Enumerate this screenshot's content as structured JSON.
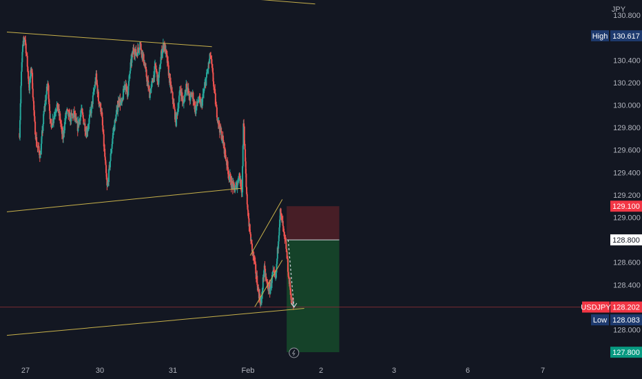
{
  "chart_data": {
    "type": "candlestick",
    "symbol": "USDJPY",
    "currency": "JPY",
    "y_axis": {
      "min": 127.7,
      "max": 130.9,
      "ticks": [
        "130.800",
        "130.600",
        "130.400",
        "130.200",
        "130.000",
        "129.800",
        "129.600",
        "129.400",
        "129.200",
        "129.000",
        "128.800",
        "128.600",
        "128.400",
        "128.200",
        "128.000"
      ]
    },
    "x_axis": {
      "ticks": [
        {
          "label": "27",
          "day": 0
        },
        {
          "label": "30",
          "day": 1
        },
        {
          "label": "31",
          "day": 2
        },
        {
          "label": "Feb",
          "day": 3
        },
        {
          "label": "2",
          "day": 4
        },
        {
          "label": "3",
          "day": 5
        },
        {
          "label": "6",
          "day": 6
        },
        {
          "label": "7",
          "day": 7
        }
      ]
    },
    "price_path": [
      [
        -0.08,
        129.75
      ],
      [
        -0.06,
        130.2
      ],
      [
        -0.04,
        130.5
      ],
      [
        -0.01,
        130.62
      ],
      [
        0.02,
        130.4
      ],
      [
        0.05,
        130.15
      ],
      [
        0.08,
        130.35
      ],
      [
        0.12,
        129.85
      ],
      [
        0.15,
        129.65
      ],
      [
        0.2,
        129.55
      ],
      [
        0.25,
        129.95
      ],
      [
        0.3,
        130.2
      ],
      [
        0.34,
        129.8
      ],
      [
        0.38,
        129.9
      ],
      [
        0.42,
        130.0
      ],
      [
        0.46,
        129.9
      ],
      [
        0.5,
        129.7
      ],
      [
        0.55,
        129.95
      ],
      [
        0.6,
        129.88
      ],
      [
        0.65,
        129.92
      ],
      [
        0.7,
        129.8
      ],
      [
        0.75,
        129.95
      ],
      [
        0.82,
        129.75
      ],
      [
        0.88,
        129.95
      ],
      [
        0.95,
        130.25
      ],
      [
        0.98,
        130.05
      ],
      [
        1.02,
        129.95
      ],
      [
        1.06,
        129.6
      ],
      [
        1.1,
        129.25
      ],
      [
        1.14,
        129.5
      ],
      [
        1.18,
        129.75
      ],
      [
        1.22,
        129.9
      ],
      [
        1.26,
        130.05
      ],
      [
        1.3,
        130.0
      ],
      [
        1.34,
        130.2
      ],
      [
        1.38,
        130.1
      ],
      [
        1.42,
        130.35
      ],
      [
        1.46,
        130.5
      ],
      [
        1.5,
        130.45
      ],
      [
        1.55,
        130.55
      ],
      [
        1.6,
        130.4
      ],
      [
        1.64,
        130.25
      ],
      [
        1.68,
        130.1
      ],
      [
        1.72,
        130.2
      ],
      [
        1.76,
        130.35
      ],
      [
        1.8,
        130.2
      ],
      [
        1.84,
        130.45
      ],
      [
        1.88,
        130.55
      ],
      [
        1.92,
        130.4
      ],
      [
        1.96,
        130.2
      ],
      [
        2.0,
        130.05
      ],
      [
        2.04,
        129.85
      ],
      [
        2.06,
        129.95
      ],
      [
        2.1,
        130.15
      ],
      [
        2.14,
        130.0
      ],
      [
        2.18,
        130.2
      ],
      [
        2.22,
        130.05
      ],
      [
        2.26,
        130.1
      ],
      [
        2.3,
        129.95
      ],
      [
        2.34,
        130.05
      ],
      [
        2.38,
        130.0
      ],
      [
        2.42,
        130.15
      ],
      [
        2.46,
        130.3
      ],
      [
        2.5,
        130.45
      ],
      [
        2.54,
        130.2
      ],
      [
        2.58,
        129.95
      ],
      [
        2.62,
        129.8
      ],
      [
        2.66,
        129.7
      ],
      [
        2.7,
        129.55
      ],
      [
        2.74,
        129.4
      ],
      [
        2.78,
        129.3
      ],
      [
        2.82,
        129.25
      ],
      [
        2.86,
        129.3
      ],
      [
        2.88,
        129.4
      ],
      [
        2.92,
        129.22
      ],
      [
        2.94,
        129.88
      ],
      [
        2.98,
        129.2
      ],
      [
        3.02,
        128.9
      ],
      [
        3.06,
        128.7
      ],
      [
        3.1,
        128.55
      ],
      [
        3.14,
        128.35
      ],
      [
        3.18,
        128.22
      ],
      [
        3.22,
        128.55
      ],
      [
        3.26,
        128.4
      ],
      [
        3.3,
        128.35
      ],
      [
        3.34,
        128.5
      ],
      [
        3.38,
        128.45
      ],
      [
        3.4,
        128.65
      ],
      [
        3.44,
        129.05
      ],
      [
        3.47,
        128.95
      ],
      [
        3.5,
        128.8
      ],
      [
        3.52,
        128.75
      ],
      [
        3.56,
        128.45
      ],
      [
        3.6,
        128.25
      ],
      [
        3.63,
        128.2
      ]
    ],
    "trendlines": [
      {
        "from": [
          -0.25,
          130.65
        ],
        "to": [
          2.52,
          130.52
        ],
        "color": "#c9b24b"
      },
      {
        "from": [
          2.4,
          130.98
        ],
        "to": [
          3.92,
          130.9
        ],
        "color": "#c9b24b"
      },
      {
        "from": [
          -0.25,
          129.05
        ],
        "to": [
          2.92,
          129.26
        ],
        "color": "#c9b24b"
      },
      {
        "from": [
          -0.25,
          127.95
        ],
        "to": [
          3.77,
          128.19
        ],
        "color": "#c9b24b"
      },
      {
        "from": [
          3.09,
          128.2
        ],
        "to": [
          3.47,
          128.62
        ],
        "color": "#c9b24b"
      },
      {
        "from": [
          3.03,
          128.66
        ],
        "to": [
          3.47,
          129.16
        ],
        "color": "#c9b24b"
      }
    ],
    "position": {
      "type": "short",
      "entry": 128.8,
      "stop": 129.1,
      "target": 127.8,
      "start_day": 3.53,
      "end_day": 4.25,
      "projection": [
        [
          3.55,
          128.8
        ],
        [
          3.63,
          128.2
        ]
      ]
    },
    "labels": {
      "high": {
        "text": "High",
        "value": "130.617",
        "price": 130.617
      },
      "current": {
        "text": "USDJPY",
        "value": "128.202",
        "price": 128.202
      },
      "low": {
        "text": "Low",
        "value": "128.083",
        "price": 128.083
      },
      "stop": {
        "value": "129.100",
        "price": 129.1
      },
      "entry": {
        "value": "128.800",
        "price": 128.8
      },
      "target": {
        "value": "127.800",
        "price": 127.8
      }
    },
    "colors": {
      "background": "#131722",
      "up": "#26a69a",
      "down": "#ef5350",
      "trendline": "#c9b24b",
      "stop_zone": "#4a1f27",
      "target_zone": "#15452a",
      "high_low_badge": "#1e3a6e",
      "current_badge": "#f23645",
      "target_badge": "#089981",
      "entry_badge": "#ffffff",
      "current_line": "#7a2b33"
    }
  }
}
